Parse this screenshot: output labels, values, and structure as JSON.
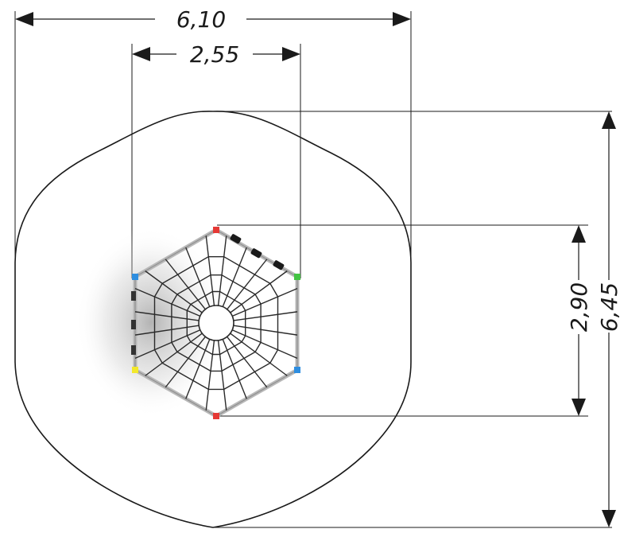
{
  "dimensions": {
    "overall_width": "6,10",
    "structure_width": "2,55",
    "structure_depth": "2,90",
    "overall_depth": "6,45"
  },
  "colors": {
    "line": "#1a1a1a",
    "frame": "#b8b8b8",
    "rope": "#2a2a2a",
    "post_red": "#e53935",
    "post_green": "#43c443",
    "post_blue": "#2e8ee0",
    "post_yellow": "#f2e82b"
  }
}
